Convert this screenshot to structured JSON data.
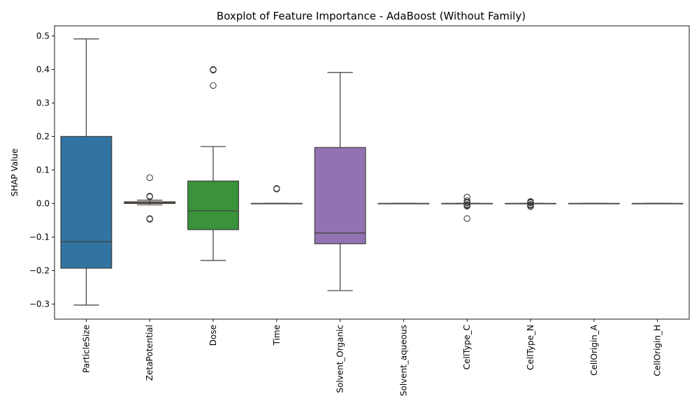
{
  "chart_data": {
    "type": "boxplot",
    "title": "Boxplot of Feature Importance - AdaBoost (Without Family)",
    "xlabel": "",
    "ylabel": "SHAP Value",
    "ylim": [
      -0.345,
      0.53
    ],
    "yticks": [
      -0.3,
      -0.2,
      -0.1,
      0.0,
      0.1,
      0.2,
      0.3,
      0.4,
      0.5
    ],
    "ytick_labels": [
      "−0.3",
      "−0.2",
      "−0.1",
      "0.0",
      "0.1",
      "0.2",
      "0.3",
      "0.4",
      "0.5"
    ],
    "grid": false,
    "legend": "none",
    "categories": [
      "ParticleSize",
      "ZetaPotential",
      "Dose",
      "Time",
      "Solvent_Organic",
      "Solvent_aqueous",
      "CellType_C",
      "CellType_N",
      "CellOrigin_A",
      "CellOrigin_H"
    ],
    "boxes": [
      {
        "category": "ParticleSize",
        "whisker_low": -0.303,
        "q1": -0.193,
        "median": -0.114,
        "q3": 0.2,
        "whisker_high": 0.491,
        "outliers": [],
        "color": "#3274a1"
      },
      {
        "category": "ZetaPotential",
        "whisker_low": -0.004,
        "q1": 0.0,
        "median": 0.003,
        "q3": 0.005,
        "whisker_high": 0.01,
        "outliers": [
          0.077,
          0.022,
          0.02,
          -0.045,
          -0.047
        ],
        "color": "#e1812c"
      },
      {
        "category": "Dose",
        "whisker_low": -0.17,
        "q1": -0.078,
        "median": -0.022,
        "q3": 0.067,
        "whisker_high": 0.17,
        "outliers": [
          0.4,
          0.398,
          0.352
        ],
        "color": "#3a923a"
      },
      {
        "category": "Time",
        "whisker_low": 0.0,
        "q1": 0.0,
        "median": 0.0,
        "q3": 0.0,
        "whisker_high": 0.0,
        "outliers": [
          0.045,
          0.043
        ],
        "color": "#c03d3e"
      },
      {
        "category": "Solvent_Organic",
        "whisker_low": -0.26,
        "q1": -0.12,
        "median": -0.088,
        "q3": 0.167,
        "whisker_high": 0.391,
        "outliers": [],
        "color": "#9372b2"
      },
      {
        "category": "Solvent_aqueous",
        "whisker_low": 0.0,
        "q1": 0.0,
        "median": 0.0,
        "q3": 0.0,
        "whisker_high": 0.0,
        "outliers": [],
        "color": "#845b53"
      },
      {
        "category": "CellType_C",
        "whisker_low": 0.0,
        "q1": 0.0,
        "median": 0.0,
        "q3": 0.0,
        "whisker_high": 0.0,
        "outliers": [
          0.019,
          0.008,
          0.004,
          0.002,
          -0.003,
          -0.005,
          -0.007,
          -0.008,
          -0.045
        ],
        "color": "#d684bd"
      },
      {
        "category": "CellType_N",
        "whisker_low": 0.0,
        "q1": 0.0,
        "median": 0.0,
        "q3": 0.0,
        "whisker_high": 0.0,
        "outliers": [
          0.006,
          0.004,
          0.002,
          -0.003,
          -0.005,
          -0.008,
          -0.009
        ],
        "color": "#7f7f7f"
      },
      {
        "category": "CellOrigin_A",
        "whisker_low": 0.0,
        "q1": 0.0,
        "median": 0.0,
        "q3": 0.0,
        "whisker_high": 0.0,
        "outliers": [],
        "color": "#a9aa35"
      },
      {
        "category": "CellOrigin_H",
        "whisker_low": 0.0,
        "q1": 0.0,
        "median": 0.0,
        "q3": 0.0,
        "whisker_high": 0.0,
        "outliers": [],
        "color": "#2ed0dd"
      }
    ]
  }
}
